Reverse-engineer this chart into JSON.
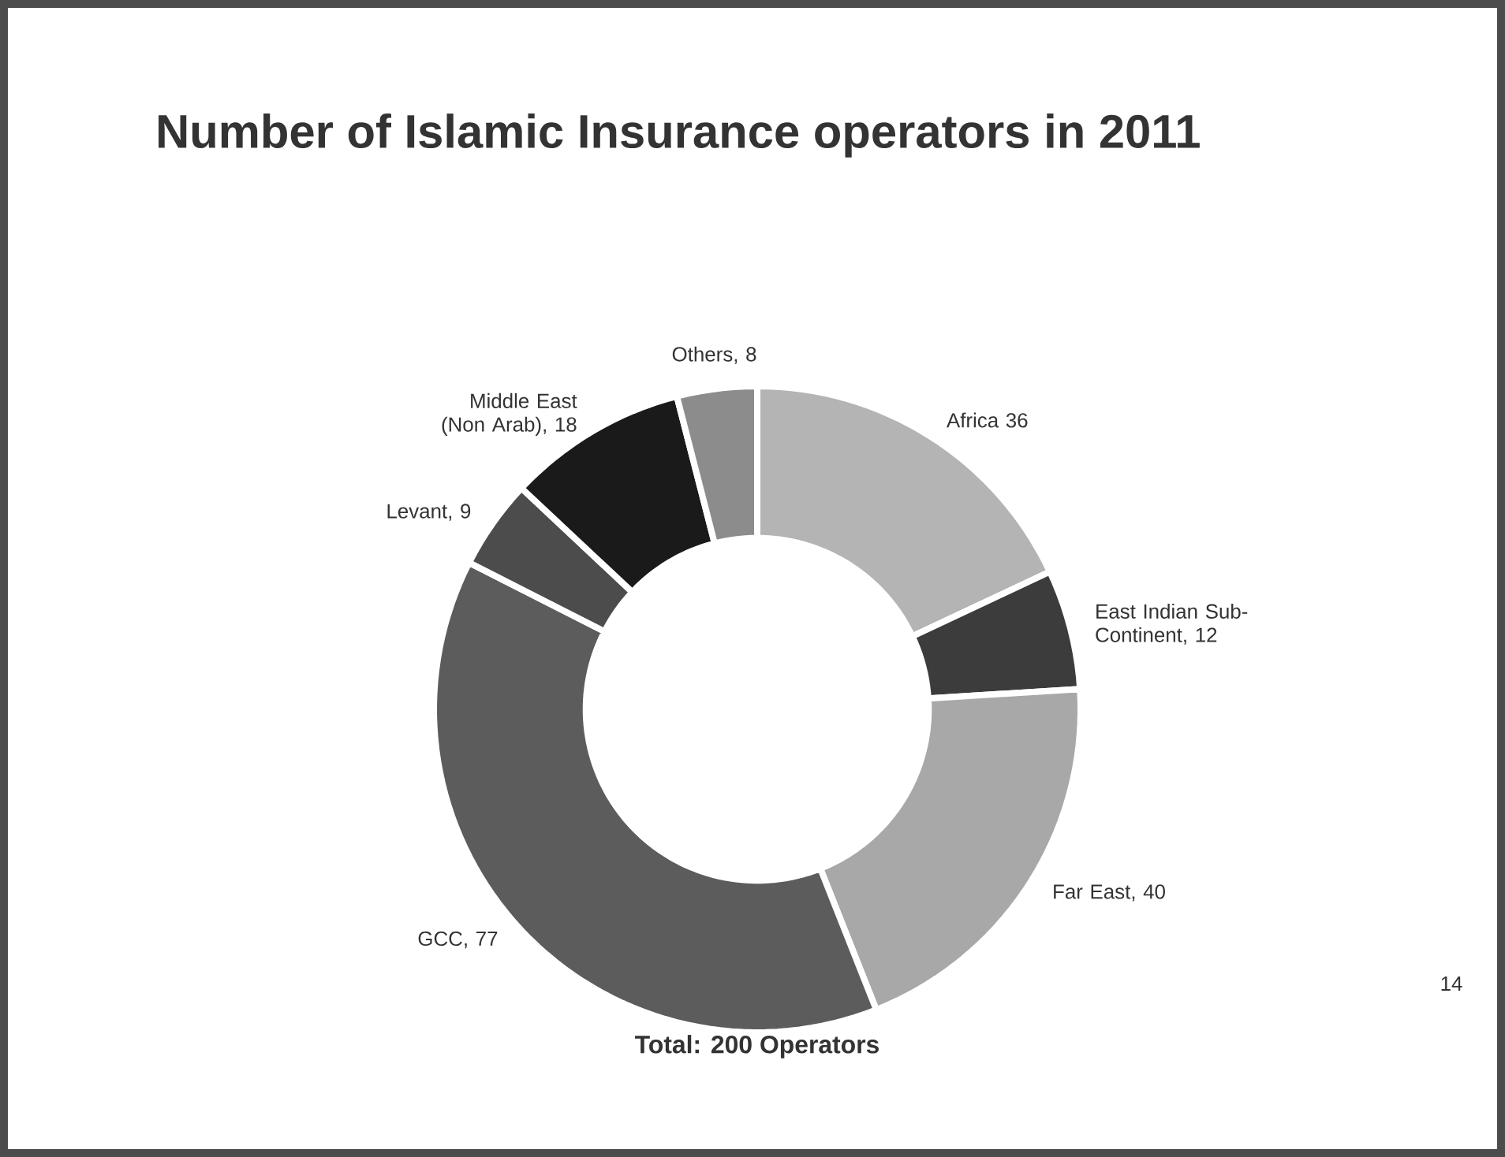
{
  "chart_data": {
    "type": "donut",
    "title": "Number of Islamic Insurance operators in 2011",
    "categories": [
      "Africa 36",
      "East Indian Sub-Continent, 12",
      "Far East, 40",
      "GCC, 77",
      "Levant, 9",
      "Middle East (Non Arab), 18",
      "Others, 8"
    ],
    "values": [
      36,
      12,
      40,
      77,
      9,
      18,
      8
    ],
    "colors": [
      "#b4b4b4",
      "#3c3c3c",
      "#a8a8a8",
      "#5c5c5c",
      "#4c4c4c",
      "#1a1a1a",
      "#8c8c8c"
    ],
    "annotations": [
      "Total: 200 Operators",
      "14"
    ]
  }
}
